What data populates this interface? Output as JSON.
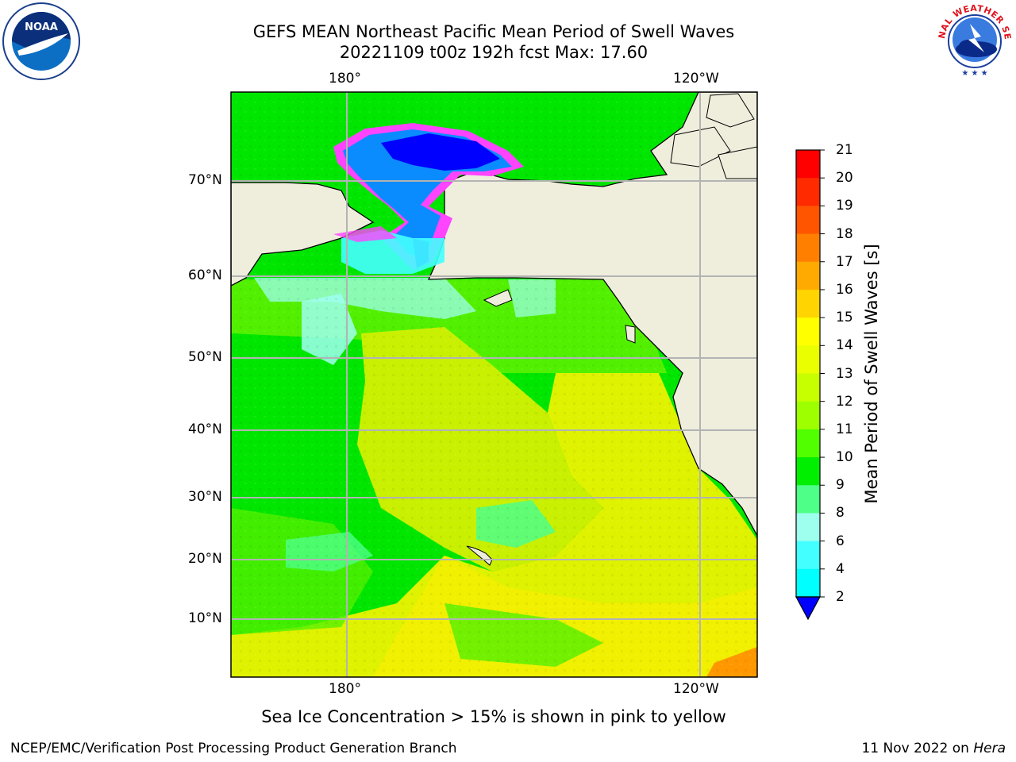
{
  "header": {
    "title_line1": "GEFS MEAN Northeast Pacific Mean Period of Swell Waves",
    "title_line2": "20221109 t00z 192h fcst   Max: 17.60"
  },
  "logos": {
    "noaa": "NOAA",
    "nws": "NATIONAL WEATHER SERVICE"
  },
  "map": {
    "lon_ticks": [
      "180°",
      "120°W"
    ],
    "lat_ticks": [
      "70°N",
      "60°N",
      "50°N",
      "40°N",
      "30°N",
      "20°N",
      "10°N"
    ],
    "land_color": "#efeedd",
    "grid_color": "#b3b3b3",
    "ocean_colors": {
      "deep_green": "#00e600",
      "green": "#52f000",
      "yellow_green": "#c8f000",
      "yellow": "#f0f000",
      "orange": "#ff9800",
      "cyan": "#9ffff0",
      "blue": "#0000ff",
      "ice_pink": "#ff44ff"
    }
  },
  "colorbar": {
    "label": "Mean Period of Swell Waves [s]",
    "ticks": [
      "21",
      "20",
      "19",
      "18",
      "17",
      "16",
      "15",
      "14",
      "13",
      "12",
      "11",
      "10",
      "9",
      "8",
      "6",
      "4",
      "2"
    ],
    "colors": [
      "#ff0000",
      "#ff2a00",
      "#ff5500",
      "#ff8000",
      "#ffaa00",
      "#ffd400",
      "#ffff00",
      "#eaff00",
      "#c8ff00",
      "#9eff00",
      "#52ff00",
      "#00ee00",
      "#4eff88",
      "#9effee",
      "#44ffff",
      "#00ffff",
      "#00c8ff",
      "#0000ff"
    ]
  },
  "subtitle": "Sea Ice Concentration > 15% is shown in pink to yellow",
  "footer": {
    "left": "NCEP/EMC/Verification Post Processing Product Generation Branch",
    "right_prefix": "11 Nov 2022 on ",
    "right_host": "Hera"
  }
}
